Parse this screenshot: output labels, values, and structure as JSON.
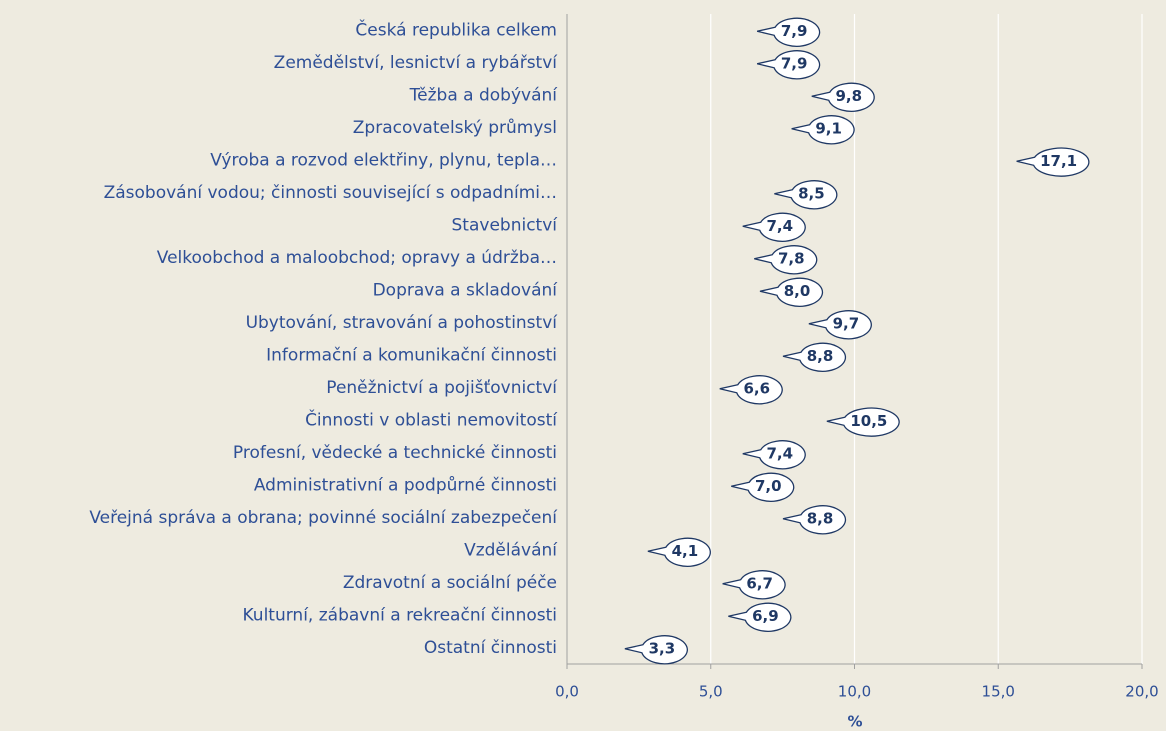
{
  "chart_data": {
    "type": "callout",
    "x_label": "%",
    "categories": [
      "Česká republika celkem",
      "Zemědělství, lesnictví a rybářství",
      "Těžba a dobývání",
      "Zpracovatelský průmysl",
      "Výroba a rozvod elektřiny, plynu, tepla…",
      "Zásobování vodou; činnosti související s odpadními…",
      "Stavebnictví",
      "Velkoobchod a maloobchod; opravy a údržba…",
      "Doprava a skladování",
      "Ubytování, stravování a pohostinství",
      "Informační a komunikační činnosti",
      "Peněžnictví a pojišťovnictví",
      "Činnosti v oblasti nemovitostí",
      "Profesní, vědecké a technické činnosti",
      "Administrativní a podpůrné činnosti",
      "Veřejná správa a obrana; povinné sociální zabezpečení",
      "Vzdělávání",
      "Zdravotní a sociální péče",
      "Kulturní, zábavní a rekreační činnosti",
      "Ostatní činnosti"
    ],
    "values": [
      7.9,
      7.9,
      9.8,
      9.1,
      17.1,
      8.5,
      7.4,
      7.8,
      8.0,
      9.7,
      8.8,
      6.6,
      10.5,
      7.4,
      7.0,
      8.8,
      4.1,
      6.7,
      6.9,
      3.3
    ],
    "value_labels": [
      "7,9",
      "7,9",
      "9,8",
      "9,1",
      "17,1",
      "8,5",
      "7,4",
      "7,8",
      "8,0",
      "9,7",
      "8,8",
      "6,6",
      "10,5",
      "7,4",
      "7,0",
      "8,8",
      "4,1",
      "6,7",
      "6,9",
      "3,3"
    ],
    "xlim": [
      0,
      20
    ],
    "xticks": [
      {
        "value": 0,
        "label": "0,0"
      },
      {
        "value": 5,
        "label": "5,0"
      },
      {
        "value": 10,
        "label": "10,0"
      },
      {
        "value": 15,
        "label": "15,0"
      },
      {
        "value": 20,
        "label": "20,0"
      }
    ],
    "grid": true,
    "color": "#1f3864"
  }
}
